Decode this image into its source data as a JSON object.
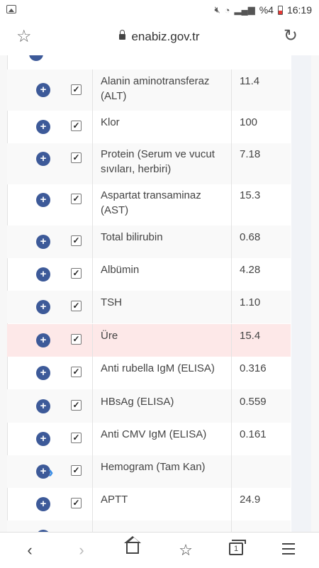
{
  "status_bar": {
    "battery_text": "%4",
    "time": "16:19"
  },
  "browser": {
    "url": "enabiz.gov.tr"
  },
  "results": [
    {
      "name": "Alanin aminotransferaz (ALT)",
      "value": "11.4",
      "checked": true,
      "highlight": false
    },
    {
      "name": "Klor",
      "value": "100",
      "checked": true,
      "highlight": false
    },
    {
      "name": "Protein (Serum ve vucut sıvıları, herbiri)",
      "value": "7.18",
      "checked": true,
      "highlight": false
    },
    {
      "name": "Aspartat transaminaz (AST)",
      "value": "15.3",
      "checked": true,
      "highlight": false
    },
    {
      "name": "Total bilirubin",
      "value": "0.68",
      "checked": true,
      "highlight": false
    },
    {
      "name": "Albümin",
      "value": "4.28",
      "checked": true,
      "highlight": false
    },
    {
      "name": "TSH",
      "value": "1.10",
      "checked": true,
      "highlight": false
    },
    {
      "name": "Üre",
      "value": "15.4",
      "checked": true,
      "highlight": true
    },
    {
      "name": "Anti rubella IgM (ELISA)",
      "value": "0.316",
      "checked": true,
      "highlight": false
    },
    {
      "name": "HBsAg (ELISA)",
      "value": "0.559",
      "checked": true,
      "highlight": false
    },
    {
      "name": "Anti CMV IgM (ELISA)",
      "value": "0.161",
      "checked": true,
      "highlight": false
    },
    {
      "name": "Hemogram (Tam Kan)",
      "value": "",
      "checked": true,
      "highlight": false
    },
    {
      "name": "APTT",
      "value": "24.9",
      "checked": true,
      "highlight": false
    }
  ],
  "icons": {
    "expand": "plus-circle-icon",
    "checkbox": "checkbox-checked-icon",
    "cursor": "chevron-right-icon"
  },
  "colors": {
    "expand_button": "#3d5a99",
    "highlight_row": "#fde8e8",
    "cursor_chevron": "#3a8fe8"
  },
  "nav": {
    "back": "back-icon",
    "forward": "forward-icon",
    "home": "home-icon",
    "bookmarks": "bookmark-star-icon",
    "tabs_count": "1",
    "menu": "menu-icon"
  }
}
